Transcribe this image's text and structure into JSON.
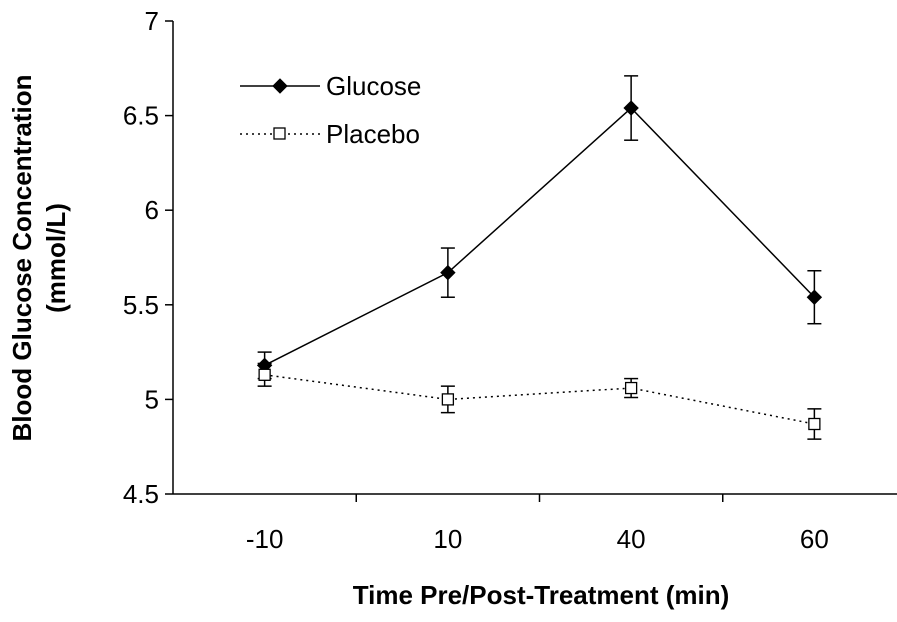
{
  "chart_data": {
    "type": "line",
    "categories": [
      "-10",
      "10",
      "40",
      "60"
    ],
    "xlabel": "Time Pre/Post-Treatment (min)",
    "ylabel_lines": [
      "Blood Glucose Concentration",
      "(mmol/L)"
    ],
    "ylim": [
      4.5,
      7
    ],
    "yticks": [
      "4.5",
      "5",
      "5.5",
      "6",
      "6.5",
      "7"
    ],
    "grid": false,
    "legend_position": "top-left",
    "series": [
      {
        "name": "Glucose",
        "values": [
          5.18,
          5.67,
          6.54,
          5.54
        ],
        "errors": [
          0.07,
          0.13,
          0.17,
          0.14
        ],
        "marker": "filled-diamond",
        "line_style": "solid",
        "color": "#000000"
      },
      {
        "name": "Placebo",
        "values": [
          5.13,
          5.0,
          5.06,
          4.87
        ],
        "errors": [
          0.06,
          0.07,
          0.05,
          0.08
        ],
        "marker": "open-square",
        "line_style": "dotted",
        "color": "#000000"
      }
    ]
  }
}
